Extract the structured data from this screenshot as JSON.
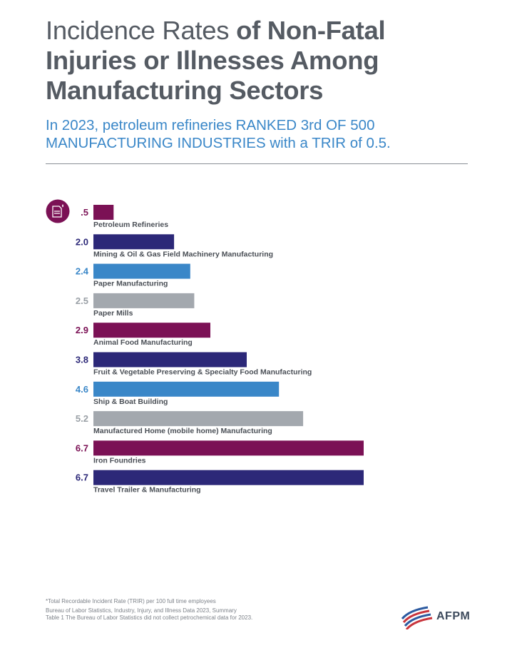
{
  "header": {
    "title_light": "Incidence Rates ",
    "title_bold": "of Non-Fatal Injuries or Illnesses Among Manufacturing  Sectors",
    "subtitle": "In 2023, petroleum refineries RANKED 3rd OF 500 MANUFACTURING INDUSTRIES with a TRIR of 0.5."
  },
  "chart_data": {
    "type": "bar",
    "orientation": "horizontal",
    "categories": [
      "Petroleum Refineries",
      "Mining & Oil & Gas Field Machinery Manufacturing",
      "Paper Manufacturing",
      "Paper Mills",
      "Animal Food Manufacturing",
      "Fruit & Vegetable Preserving & Specialty Food Manufacturing",
      "Ship & Boat Building",
      "Manufactured Home (mobile home) Manufacturing",
      "Iron Foundries",
      "Travel Trailer & Manufacturing"
    ],
    "values": [
      0.5,
      2.0,
      2.4,
      2.5,
      2.9,
      3.8,
      4.6,
      5.2,
      6.7,
      6.7
    ],
    "value_labels": [
      ".5",
      "2.0",
      "2.4",
      "2.5",
      "2.9",
      "3.8",
      "4.6",
      "5.2",
      "6.7",
      "6.7"
    ],
    "colors": [
      "#7b1155",
      "#2c2878",
      "#3a87c8",
      "#a3a8ae",
      "#7b1155",
      "#2c2878",
      "#3a87c8",
      "#a3a8ae",
      "#7b1155",
      "#2c2878"
    ],
    "xlim": [
      0,
      6.7
    ],
    "grid": false,
    "legend": "none",
    "highlight_icon": "refinery-icon"
  },
  "footnotes": {
    "line1": "*Total Recordable Incident Rate (TRIR) per 100 full time employees",
    "line2": "Bureau of Labor Statistics, Industry, Injury, and Illness Data 2023, Summary",
    "line3": "Table 1 The Bureau of Labor Statistics did not collect petrochemical data for 2023."
  },
  "logo": {
    "text": "AFPM",
    "icon": "afpm-flag-icon",
    "colors": [
      "#c8343c",
      "#2c5aa0"
    ]
  }
}
